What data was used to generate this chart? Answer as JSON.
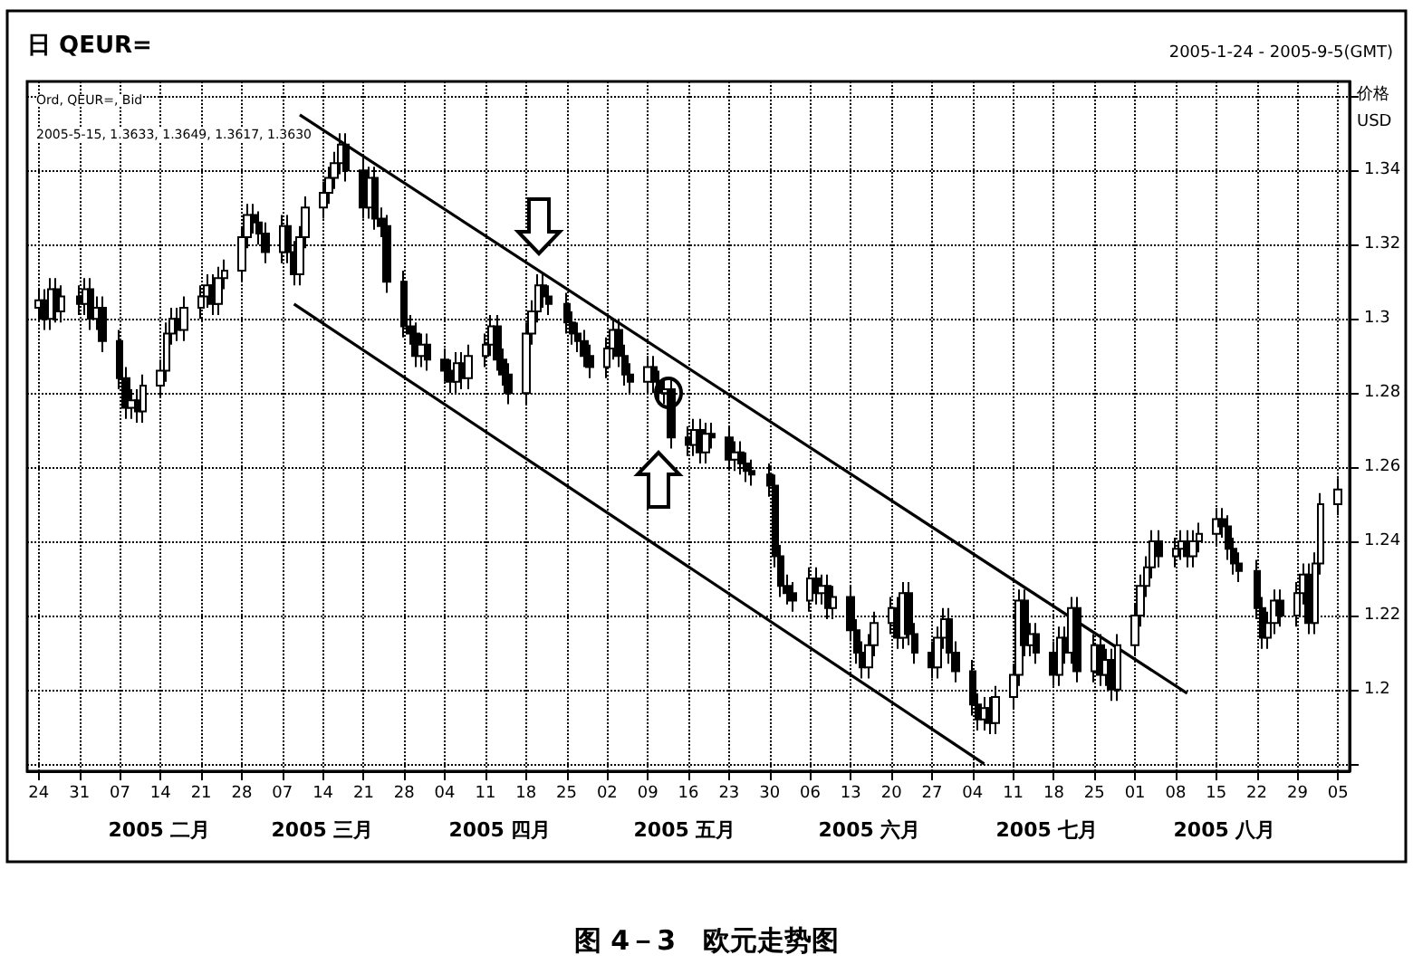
{
  "chart_data": {
    "type": "candlestick",
    "title": "日 QEUR=",
    "subtitle": "2005-1-24 - 2005-9-5(GMT)",
    "ylabel": "价格",
    "annotations": [
      "Ord, QEUR=, Bid",
      "2005-5-15, 1.3633, 1.3649, 1.3617, 1.3630",
      "USD",
      "2005 二月",
      "2005 三月",
      "2005 四月",
      "2005 五月",
      "2005 六月",
      "2005 七月",
      "2005 八月",
      "图 4－3　欧元走势图"
    ],
    "xlim": [
      "2005-01-22",
      "2005-09-07"
    ],
    "ylim": [
      1.178,
      1.364
    ],
    "xticks": [
      {
        "value": "2005-01-24",
        "label": "24"
      },
      {
        "value": "2005-01-31",
        "label": "31"
      },
      {
        "value": "2005-02-07",
        "label": "07"
      },
      {
        "value": "2005-02-14",
        "label": "14"
      },
      {
        "value": "2005-02-21",
        "label": "21"
      },
      {
        "value": "2005-02-28",
        "label": "28"
      },
      {
        "value": "2005-03-07",
        "label": "07"
      },
      {
        "value": "2005-03-14",
        "label": "14"
      },
      {
        "value": "2005-03-21",
        "label": "21"
      },
      {
        "value": "2005-03-28",
        "label": "28"
      },
      {
        "value": "2005-04-04",
        "label": "04"
      },
      {
        "value": "2005-04-11",
        "label": "11"
      },
      {
        "value": "2005-04-18",
        "label": "18"
      },
      {
        "value": "2005-04-25",
        "label": "25"
      },
      {
        "value": "2005-05-02",
        "label": "02"
      },
      {
        "value": "2005-05-09",
        "label": "09"
      },
      {
        "value": "2005-05-16",
        "label": "16"
      },
      {
        "value": "2005-05-23",
        "label": "23"
      },
      {
        "value": "2005-05-30",
        "label": "30"
      },
      {
        "value": "2005-06-06",
        "label": "06"
      },
      {
        "value": "2005-06-13",
        "label": "13"
      },
      {
        "value": "2005-06-20",
        "label": "20"
      },
      {
        "value": "2005-06-27",
        "label": "27"
      },
      {
        "value": "2005-07-04",
        "label": "04"
      },
      {
        "value": "2005-07-11",
        "label": "11"
      },
      {
        "value": "2005-07-18",
        "label": "18"
      },
      {
        "value": "2005-07-25",
        "label": "25"
      },
      {
        "value": "2005-08-01",
        "label": "01"
      },
      {
        "value": "2005-08-08",
        "label": "08"
      },
      {
        "value": "2005-08-15",
        "label": "15"
      },
      {
        "value": "2005-08-22",
        "label": "22"
      },
      {
        "value": "2005-08-29",
        "label": "29"
      },
      {
        "value": "2005-09-05",
        "label": "05"
      }
    ],
    "yticks": [
      {
        "value": 1.18,
        "label": null
      },
      1.2,
      1.22,
      1.24,
      1.26,
      1.28,
      1.3,
      1.32,
      1.34,
      {
        "value": 1.36,
        "label": null
      }
    ],
    "grid": true,
    "series": [
      {
        "type": "candlestick",
        "color": "#000000",
        "x": [
          "2005-01-24",
          "2005-01-25",
          "2005-01-26",
          "2005-01-27",
          "2005-01-28",
          "2005-01-31",
          "2005-02-01",
          "2005-02-02",
          "2005-02-03",
          "2005-02-04",
          "2005-02-07",
          "2005-02-08",
          "2005-02-09",
          "2005-02-10",
          "2005-02-11",
          "2005-02-14",
          "2005-02-15",
          "2005-02-16",
          "2005-02-17",
          "2005-02-18",
          "2005-02-21",
          "2005-02-22",
          "2005-02-23",
          "2005-02-24",
          "2005-02-25",
          "2005-02-28",
          "2005-03-01",
          "2005-03-02",
          "2005-03-03",
          "2005-03-04",
          "2005-03-07",
          "2005-03-08",
          "2005-03-09",
          "2005-03-10",
          "2005-03-11",
          "2005-03-14",
          "2005-03-15",
          "2005-03-16",
          "2005-03-17",
          "2005-03-18",
          "2005-03-21",
          "2005-03-22",
          "2005-03-23",
          "2005-03-24",
          "2005-03-25",
          "2005-03-28",
          "2005-03-29",
          "2005-03-30",
          "2005-03-31",
          "2005-04-01",
          "2005-04-04",
          "2005-04-05",
          "2005-04-06",
          "2005-04-07",
          "2005-04-08",
          "2005-04-11",
          "2005-04-12",
          "2005-04-13",
          "2005-04-14",
          "2005-04-15",
          "2005-04-18",
          "2005-04-19",
          "2005-04-20",
          "2005-04-21",
          "2005-04-22",
          "2005-04-25",
          "2005-04-26",
          "2005-04-27",
          "2005-04-28",
          "2005-04-29",
          "2005-05-02",
          "2005-05-03",
          "2005-05-04",
          "2005-05-05",
          "2005-05-06",
          "2005-05-09",
          "2005-05-10",
          "2005-05-11",
          "2005-05-12",
          "2005-05-13",
          "2005-05-16",
          "2005-05-17",
          "2005-05-18",
          "2005-05-19",
          "2005-05-20",
          "2005-05-23",
          "2005-05-24",
          "2005-05-25",
          "2005-05-26",
          "2005-05-27",
          "2005-05-30",
          "2005-05-31",
          "2005-06-01",
          "2005-06-02",
          "2005-06-03",
          "2005-06-06",
          "2005-06-07",
          "2005-06-08",
          "2005-06-09",
          "2005-06-10",
          "2005-06-13",
          "2005-06-14",
          "2005-06-15",
          "2005-06-16",
          "2005-06-17",
          "2005-06-20",
          "2005-06-21",
          "2005-06-22",
          "2005-06-23",
          "2005-06-24",
          "2005-06-27",
          "2005-06-28",
          "2005-06-29",
          "2005-06-30",
          "2005-07-01",
          "2005-07-04",
          "2005-07-05",
          "2005-07-06",
          "2005-07-07",
          "2005-07-08",
          "2005-07-11",
          "2005-07-12",
          "2005-07-13",
          "2005-07-14",
          "2005-07-15",
          "2005-07-18",
          "2005-07-19",
          "2005-07-20",
          "2005-07-21",
          "2005-07-22",
          "2005-07-25",
          "2005-07-26",
          "2005-07-27",
          "2005-07-28",
          "2005-07-29",
          "2005-08-01",
          "2005-08-02",
          "2005-08-03",
          "2005-08-04",
          "2005-08-05",
          "2005-08-08",
          "2005-08-09",
          "2005-08-10",
          "2005-08-11",
          "2005-08-12",
          "2005-08-15",
          "2005-08-16",
          "2005-08-17",
          "2005-08-18",
          "2005-08-19",
          "2005-08-22",
          "2005-08-23",
          "2005-08-24",
          "2005-08-25",
          "2005-08-26",
          "2005-08-29",
          "2005-08-30",
          "2005-08-31",
          "2005-09-01",
          "2005-09-02",
          "2005-09-05"
        ],
        "ohlc": [
          [
            1.303,
            1.308,
            1.3,
            1.305
          ],
          [
            1.305,
            1.308,
            1.297,
            1.3
          ],
          [
            1.3,
            1.311,
            1.297,
            1.308
          ],
          [
            1.308,
            1.311,
            1.299,
            1.302
          ],
          [
            1.302,
            1.309,
            1.299,
            1.306
          ],
          [
            1.306,
            1.309,
            1.301,
            1.304
          ],
          [
            1.304,
            1.311,
            1.301,
            1.308
          ],
          [
            1.308,
            1.311,
            1.297,
            1.3
          ],
          [
            1.3,
            1.306,
            1.297,
            1.303
          ],
          [
            1.303,
            1.306,
            1.291,
            1.294
          ],
          [
            1.294,
            1.297,
            1.281,
            1.284
          ],
          [
            1.284,
            1.287,
            1.273,
            1.276
          ],
          [
            1.276,
            1.281,
            1.273,
            1.278
          ],
          [
            1.278,
            1.281,
            1.272,
            1.275
          ],
          [
            1.275,
            1.285,
            1.272,
            1.282
          ],
          [
            1.282,
            1.289,
            1.279,
            1.286
          ],
          [
            1.286,
            1.299,
            1.283,
            1.296
          ],
          [
            1.296,
            1.303,
            1.293,
            1.3
          ],
          [
            1.3,
            1.303,
            1.294,
            1.297
          ],
          [
            1.297,
            1.306,
            1.294,
            1.303
          ],
          [
            1.303,
            1.309,
            1.3,
            1.306
          ],
          [
            1.306,
            1.312,
            1.303,
            1.309
          ],
          [
            1.309,
            1.312,
            1.301,
            1.304
          ],
          [
            1.304,
            1.314,
            1.301,
            1.311
          ],
          [
            1.311,
            1.316,
            1.308,
            1.313
          ],
          [
            1.313,
            1.325,
            1.31,
            1.322
          ],
          [
            1.322,
            1.331,
            1.319,
            1.328
          ],
          [
            1.328,
            1.331,
            1.323,
            1.326
          ],
          [
            1.326,
            1.329,
            1.32,
            1.323
          ],
          [
            1.323,
            1.326,
            1.315,
            1.318
          ],
          [
            1.318,
            1.328,
            1.315,
            1.325
          ],
          [
            1.325,
            1.328,
            1.315,
            1.318
          ],
          [
            1.318,
            1.321,
            1.309,
            1.312
          ],
          [
            1.312,
            1.325,
            1.309,
            1.322
          ],
          [
            1.322,
            1.333,
            1.319,
            1.33
          ],
          [
            1.33,
            1.337,
            1.327,
            1.334
          ],
          [
            1.334,
            1.341,
            1.331,
            1.338
          ],
          [
            1.338,
            1.345,
            1.335,
            1.342
          ],
          [
            1.342,
            1.35,
            1.339,
            1.347
          ],
          [
            1.347,
            1.35,
            1.337,
            1.34
          ],
          [
            1.34,
            1.343,
            1.327,
            1.33
          ],
          [
            1.33,
            1.341,
            1.327,
            1.338
          ],
          [
            1.338,
            1.341,
            1.324,
            1.327
          ],
          [
            1.327,
            1.33,
            1.322,
            1.325
          ],
          [
            1.325,
            1.328,
            1.307,
            1.31
          ],
          [
            1.31,
            1.313,
            1.295,
            1.298
          ],
          [
            1.298,
            1.301,
            1.293,
            1.296
          ],
          [
            1.296,
            1.299,
            1.287,
            1.29
          ],
          [
            1.29,
            1.296,
            1.287,
            1.293
          ],
          [
            1.293,
            1.296,
            1.286,
            1.289
          ],
          [
            1.289,
            1.292,
            1.283,
            1.286
          ],
          [
            1.286,
            1.289,
            1.28,
            1.283
          ],
          [
            1.283,
            1.291,
            1.28,
            1.288
          ],
          [
            1.288,
            1.291,
            1.281,
            1.284
          ],
          [
            1.284,
            1.293,
            1.281,
            1.29
          ],
          [
            1.29,
            1.296,
            1.287,
            1.293
          ],
          [
            1.293,
            1.301,
            1.29,
            1.298
          ],
          [
            1.298,
            1.301,
            1.286,
            1.289
          ],
          [
            1.289,
            1.292,
            1.282,
            1.285
          ],
          [
            1.285,
            1.288,
            1.277,
            1.28
          ],
          [
            1.28,
            1.299,
            1.277,
            1.296
          ],
          [
            1.296,
            1.305,
            1.293,
            1.302
          ],
          [
            1.302,
            1.312,
            1.299,
            1.309
          ],
          [
            1.309,
            1.312,
            1.303,
            1.306
          ],
          [
            1.306,
            1.309,
            1.301,
            1.304
          ],
          [
            1.304,
            1.307,
            1.296,
            1.299
          ],
          [
            1.299,
            1.302,
            1.293,
            1.296
          ],
          [
            1.296,
            1.299,
            1.291,
            1.294
          ],
          [
            1.294,
            1.297,
            1.287,
            1.29
          ],
          [
            1.29,
            1.293,
            1.284,
            1.287
          ],
          [
            1.287,
            1.295,
            1.284,
            1.292
          ],
          [
            1.292,
            1.3,
            1.289,
            1.297
          ],
          [
            1.297,
            1.3,
            1.287,
            1.29
          ],
          [
            1.29,
            1.293,
            1.282,
            1.285
          ],
          [
            1.285,
            1.288,
            1.28,
            1.283
          ],
          [
            1.283,
            1.29,
            1.28,
            1.287
          ],
          [
            1.287,
            1.29,
            1.28,
            1.283
          ],
          [
            1.283,
            1.286,
            1.277,
            1.28
          ],
          [
            1.28,
            1.284,
            1.277,
            1.281
          ],
          [
            1.281,
            1.284,
            1.265,
            1.268
          ],
          [
            1.268,
            1.271,
            1.263,
            1.266
          ],
          [
            1.266,
            1.273,
            1.263,
            1.27
          ],
          [
            1.27,
            1.273,
            1.261,
            1.264
          ],
          [
            1.264,
            1.272,
            1.261,
            1.269
          ],
          [
            1.269,
            1.272,
            1.265,
            1.268
          ],
          [
            1.268,
            1.271,
            1.259,
            1.262
          ],
          [
            1.262,
            1.267,
            1.259,
            1.264
          ],
          [
            1.264,
            1.267,
            1.258,
            1.261
          ],
          [
            1.261,
            1.264,
            1.256,
            1.259
          ],
          [
            1.259,
            1.262,
            1.255,
            1.258
          ],
          [
            1.258,
            1.261,
            1.252,
            1.255
          ],
          [
            1.255,
            1.258,
            1.233,
            1.236
          ],
          [
            1.236,
            1.239,
            1.225,
            1.228
          ],
          [
            1.228,
            1.231,
            1.223,
            1.226
          ],
          [
            1.226,
            1.229,
            1.221,
            1.224
          ],
          [
            1.224,
            1.233,
            1.221,
            1.23
          ],
          [
            1.23,
            1.233,
            1.223,
            1.226
          ],
          [
            1.226,
            1.231,
            1.223,
            1.228
          ],
          [
            1.228,
            1.231,
            1.219,
            1.222
          ],
          [
            1.222,
            1.228,
            1.219,
            1.225
          ],
          [
            1.225,
            1.228,
            1.213,
            1.216
          ],
          [
            1.216,
            1.219,
            1.207,
            1.21
          ],
          [
            1.21,
            1.213,
            1.203,
            1.206
          ],
          [
            1.206,
            1.215,
            1.203,
            1.212
          ],
          [
            1.212,
            1.221,
            1.209,
            1.218
          ],
          [
            1.218,
            1.225,
            1.215,
            1.222
          ],
          [
            1.222,
            1.225,
            1.211,
            1.214
          ],
          [
            1.214,
            1.229,
            1.211,
            1.226
          ],
          [
            1.226,
            1.229,
            1.212,
            1.215
          ],
          [
            1.215,
            1.218,
            1.207,
            1.21
          ],
          [
            1.21,
            1.213,
            1.203,
            1.206
          ],
          [
            1.206,
            1.217,
            1.203,
            1.214
          ],
          [
            1.214,
            1.222,
            1.211,
            1.219
          ],
          [
            1.219,
            1.222,
            1.207,
            1.21
          ],
          [
            1.21,
            1.213,
            1.202,
            1.205
          ],
          [
            1.205,
            1.208,
            1.193,
            1.196
          ],
          [
            1.196,
            1.199,
            1.189,
            1.192
          ],
          [
            1.192,
            1.198,
            1.189,
            1.195
          ],
          [
            1.195,
            1.198,
            1.188,
            1.191
          ],
          [
            1.191,
            1.201,
            1.188,
            1.198
          ],
          [
            1.198,
            1.207,
            1.195,
            1.204
          ],
          [
            1.204,
            1.227,
            1.201,
            1.224
          ],
          [
            1.224,
            1.227,
            1.209,
            1.212
          ],
          [
            1.212,
            1.218,
            1.209,
            1.215
          ],
          [
            1.215,
            1.218,
            1.207,
            1.21
          ],
          [
            1.21,
            1.213,
            1.201,
            1.204
          ],
          [
            1.204,
            1.217,
            1.201,
            1.214
          ],
          [
            1.214,
            1.217,
            1.207,
            1.21
          ],
          [
            1.21,
            1.225,
            1.207,
            1.222
          ],
          [
            1.222,
            1.225,
            1.202,
            1.205
          ],
          [
            1.205,
            1.215,
            1.202,
            1.212
          ],
          [
            1.212,
            1.215,
            1.201,
            1.204
          ],
          [
            1.204,
            1.211,
            1.201,
            1.208
          ],
          [
            1.208,
            1.211,
            1.197,
            1.2
          ],
          [
            1.2,
            1.215,
            1.197,
            1.212
          ],
          [
            1.212,
            1.223,
            1.209,
            1.22
          ],
          [
            1.22,
            1.231,
            1.217,
            1.228
          ],
          [
            1.228,
            1.236,
            1.225,
            1.233
          ],
          [
            1.233,
            1.243,
            1.23,
            1.24
          ],
          [
            1.24,
            1.243,
            1.233,
            1.236
          ],
          [
            1.236,
            1.241,
            1.233,
            1.238
          ],
          [
            1.238,
            1.243,
            1.235,
            1.24
          ],
          [
            1.24,
            1.243,
            1.233,
            1.236
          ],
          [
            1.236,
            1.243,
            1.233,
            1.24
          ],
          [
            1.24,
            1.245,
            1.237,
            1.242
          ],
          [
            1.242,
            1.249,
            1.239,
            1.246
          ],
          [
            1.246,
            1.249,
            1.241,
            1.244
          ],
          [
            1.244,
            1.247,
            1.235,
            1.238
          ],
          [
            1.238,
            1.241,
            1.231,
            1.234
          ],
          [
            1.234,
            1.237,
            1.229,
            1.232
          ],
          [
            1.232,
            1.235,
            1.219,
            1.222
          ],
          [
            1.222,
            1.225,
            1.211,
            1.214
          ],
          [
            1.214,
            1.221,
            1.211,
            1.218
          ],
          [
            1.218,
            1.227,
            1.215,
            1.224
          ],
          [
            1.224,
            1.227,
            1.217,
            1.22
          ],
          [
            1.22,
            1.229,
            1.217,
            1.226
          ],
          [
            1.226,
            1.234,
            1.223,
            1.231
          ],
          [
            1.231,
            1.234,
            1.215,
            1.218
          ],
          [
            1.218,
            1.237,
            1.215,
            1.234
          ],
          [
            1.234,
            1.253,
            1.231,
            1.25
          ],
          [
            1.25,
            1.257,
            1.247,
            1.254
          ]
        ]
      },
      {
        "type": "line",
        "color": "#000000",
        "x": [
          "2005-03-10",
          "2005-08-10"
        ],
        "values": [
          1.355,
          1.199
        ]
      },
      {
        "type": "line",
        "color": "#000000",
        "x": [
          "2005-03-09",
          "2005-07-06"
        ],
        "values": [
          1.304,
          1.18
        ]
      }
    ]
  }
}
